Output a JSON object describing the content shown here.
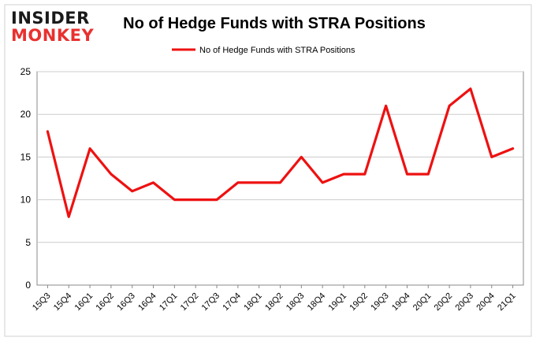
{
  "logo": {
    "line1": "INSIDER",
    "line2": "MONKEY",
    "color_line1": "#1a1a1a",
    "color_line2": "#e8312f"
  },
  "chart_data": {
    "type": "line",
    "title": "No of Hedge Funds with STRA Positions",
    "xlabel": "",
    "ylabel": "",
    "ylim": [
      0,
      25
    ],
    "yticks": [
      0,
      5,
      10,
      15,
      20,
      25
    ],
    "grid": true,
    "legend_position": "top-center",
    "categories": [
      "15Q3",
      "15Q4",
      "16Q1",
      "16Q2",
      "16Q3",
      "16Q4",
      "17Q1",
      "17Q2",
      "17Q3",
      "17Q4",
      "18Q1",
      "18Q2",
      "18Q3",
      "18Q4",
      "19Q1",
      "19Q2",
      "19Q3",
      "19Q4",
      "20Q1",
      "20Q2",
      "20Q3",
      "20Q4",
      "21Q1"
    ],
    "series": [
      {
        "name": "No of Hedge Funds with STRA Positions",
        "color": "#ee1111",
        "values": [
          18,
          8,
          16,
          13,
          11,
          12,
          10,
          10,
          10,
          12,
          12,
          12,
          15,
          12,
          13,
          13,
          21,
          13,
          13,
          21,
          23,
          15,
          16
        ]
      }
    ]
  }
}
